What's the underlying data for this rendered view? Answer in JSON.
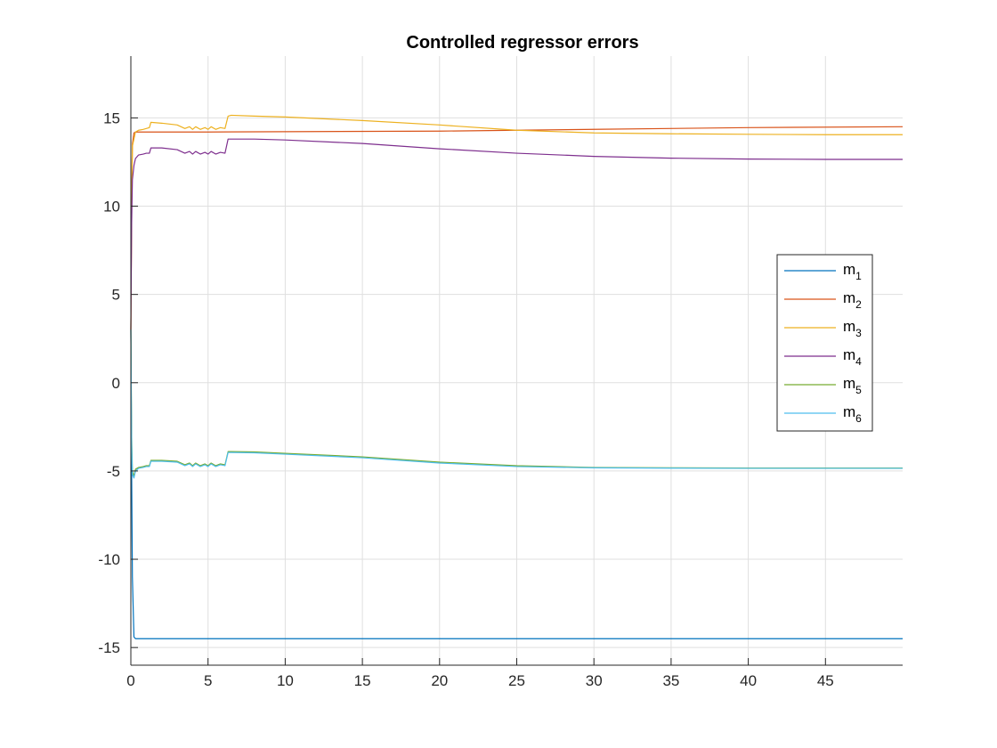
{
  "chart_data": {
    "type": "line",
    "title": "Controlled regressor errors",
    "xlabel": "",
    "ylabel": "",
    "xlim": [
      0,
      50
    ],
    "ylim": [
      -16,
      18.5
    ],
    "xticks": [
      0,
      5,
      10,
      15,
      20,
      25,
      30,
      35,
      40,
      45
    ],
    "xtick_labels": [
      "0",
      "5",
      "10",
      "15",
      "20",
      "25",
      "30",
      "35",
      "40",
      "45"
    ],
    "yticks": [
      -15,
      -10,
      -5,
      0,
      5,
      10,
      15
    ],
    "ytick_labels": [
      "-15",
      "-10",
      "-5",
      "0",
      "5",
      "10",
      "15"
    ],
    "grid": true,
    "legend_placement": "right",
    "series": [
      {
        "name": "m",
        "subscript": "1",
        "color": "#0072BD",
        "x": [
          0,
          0.05,
          0.1,
          0.2,
          0.3,
          5,
          10,
          20,
          30,
          40,
          50
        ],
        "y": [
          3.0,
          -5.0,
          -11.0,
          -14.4,
          -14.5,
          -14.5,
          -14.5,
          -14.5,
          -14.5,
          -14.5,
          -14.5
        ]
      },
      {
        "name": "m",
        "subscript": "2",
        "color": "#D95319",
        "x": [
          0,
          0.05,
          0.1,
          0.2,
          0.3,
          5,
          10,
          20,
          25,
          30,
          40,
          50
        ],
        "y": [
          3.0,
          10.0,
          13.5,
          14.15,
          14.2,
          14.2,
          14.22,
          14.25,
          14.3,
          14.35,
          14.45,
          14.5
        ]
      },
      {
        "name": "m",
        "subscript": "3",
        "color": "#EDB120",
        "x": [
          0,
          0.05,
          0.1,
          0.2,
          0.3,
          0.5,
          0.8,
          1.0,
          1.2,
          1.3,
          2.0,
          3.0,
          3.5,
          3.8,
          4.0,
          4.2,
          4.5,
          4.8,
          5.0,
          5.2,
          5.5,
          5.8,
          6.1,
          6.3,
          6.5,
          8,
          10,
          15,
          20,
          25,
          30,
          35,
          40,
          45,
          50
        ],
        "y": [
          3.0,
          10.0,
          13.4,
          13.8,
          14.2,
          14.3,
          14.35,
          14.4,
          14.45,
          14.75,
          14.7,
          14.6,
          14.4,
          14.5,
          14.35,
          14.5,
          14.35,
          14.45,
          14.35,
          14.5,
          14.35,
          14.45,
          14.4,
          15.1,
          15.15,
          15.1,
          15.05,
          14.85,
          14.6,
          14.3,
          14.15,
          14.1,
          14.07,
          14.05,
          14.05
        ]
      },
      {
        "name": "m",
        "subscript": "4",
        "color": "#7E2F8E",
        "x": [
          0,
          0.05,
          0.1,
          0.2,
          0.3,
          0.5,
          0.8,
          1.0,
          1.2,
          1.3,
          2.0,
          3.0,
          3.5,
          3.8,
          4.0,
          4.2,
          4.5,
          4.8,
          5.0,
          5.2,
          5.5,
          5.8,
          6.1,
          6.3,
          6.5,
          8,
          10,
          15,
          20,
          25,
          30,
          35,
          40,
          45,
          50
        ],
        "y": [
          3.0,
          9.0,
          11.5,
          12.3,
          12.7,
          12.9,
          12.95,
          13.0,
          13.0,
          13.3,
          13.3,
          13.2,
          13.0,
          13.1,
          12.95,
          13.1,
          12.95,
          13.05,
          12.95,
          13.1,
          12.95,
          13.05,
          13.0,
          13.8,
          13.8,
          13.8,
          13.75,
          13.55,
          13.25,
          13.0,
          12.82,
          12.72,
          12.67,
          12.65,
          12.65
        ]
      },
      {
        "name": "m",
        "subscript": "5",
        "color": "#77AC30",
        "x": [
          0,
          0.05,
          0.1,
          0.2,
          0.3,
          0.5,
          0.8,
          1.0,
          1.2,
          1.3,
          2.0,
          3.0,
          3.5,
          3.8,
          4.0,
          4.2,
          4.5,
          4.8,
          5.0,
          5.2,
          5.5,
          5.8,
          6.1,
          6.3,
          6.5,
          8,
          10,
          15,
          20,
          25,
          30,
          35,
          40,
          45,
          50
        ],
        "y": [
          3.0,
          -3.0,
          -5.0,
          -5.3,
          -4.9,
          -4.8,
          -4.75,
          -4.7,
          -4.7,
          -4.4,
          -4.4,
          -4.45,
          -4.65,
          -4.55,
          -4.7,
          -4.55,
          -4.7,
          -4.6,
          -4.7,
          -4.55,
          -4.7,
          -4.6,
          -4.65,
          -3.9,
          -3.9,
          -3.92,
          -4.0,
          -4.2,
          -4.5,
          -4.7,
          -4.8,
          -4.82,
          -4.83,
          -4.83,
          -4.83
        ]
      },
      {
        "name": "m",
        "subscript": "6",
        "color": "#4DBEEE",
        "x": [
          0,
          0.05,
          0.1,
          0.2,
          0.3,
          0.5,
          0.8,
          1.0,
          1.2,
          1.3,
          2.0,
          3.0,
          3.5,
          3.8,
          4.0,
          4.2,
          4.5,
          4.8,
          5.0,
          5.2,
          5.5,
          5.8,
          6.1,
          6.3,
          6.5,
          8,
          10,
          15,
          20,
          25,
          30,
          35,
          40,
          45,
          50
        ],
        "y": [
          3.0,
          -3.5,
          -5.2,
          -5.4,
          -5.0,
          -4.85,
          -4.8,
          -4.75,
          -4.75,
          -4.45,
          -4.45,
          -4.5,
          -4.7,
          -4.6,
          -4.75,
          -4.6,
          -4.75,
          -4.65,
          -4.75,
          -4.6,
          -4.75,
          -4.65,
          -4.7,
          -3.95,
          -3.95,
          -3.97,
          -4.05,
          -4.25,
          -4.55,
          -4.75,
          -4.82,
          -4.84,
          -4.85,
          -4.85,
          -4.85
        ]
      }
    ]
  }
}
